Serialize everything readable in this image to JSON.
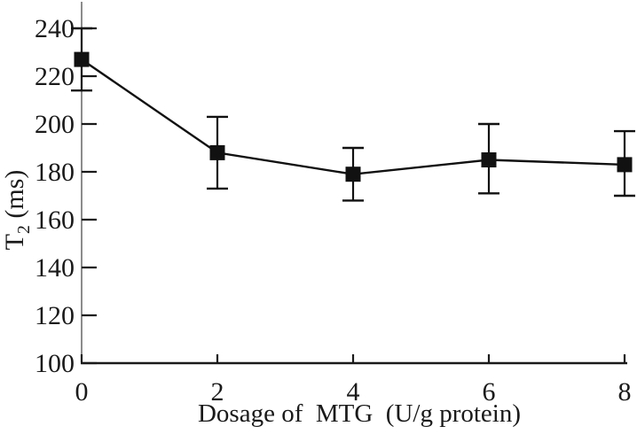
{
  "figure": {
    "background": "#ffffff",
    "text_color": "#1a1a1a"
  },
  "chart_data": {
    "type": "line",
    "title": "",
    "xlabel": "Dosage of  MTG  (U/g protein)",
    "ylabel": {
      "base": "T",
      "subscript": "2",
      "rest": " (ms)"
    },
    "x": [
      0,
      2,
      4,
      6,
      8
    ],
    "series": [
      {
        "name": "T2",
        "values": [
          227,
          188,
          179,
          185,
          183
        ],
        "error_up": [
          13,
          15,
          11,
          15,
          14
        ],
        "error_down": [
          13,
          15,
          11,
          14,
          13
        ],
        "marker": "square",
        "color": "#111111"
      }
    ],
    "xlim": [
      0,
      8
    ],
    "ylim": [
      100,
      250
    ],
    "x_ticks": [
      0,
      2,
      4,
      6,
      8
    ],
    "y_ticks": [
      100,
      120,
      140,
      160,
      180,
      200,
      220,
      240
    ],
    "grid": false,
    "legend": "none",
    "axis_color": "#707070",
    "tick_color": "#1a1a1a"
  }
}
